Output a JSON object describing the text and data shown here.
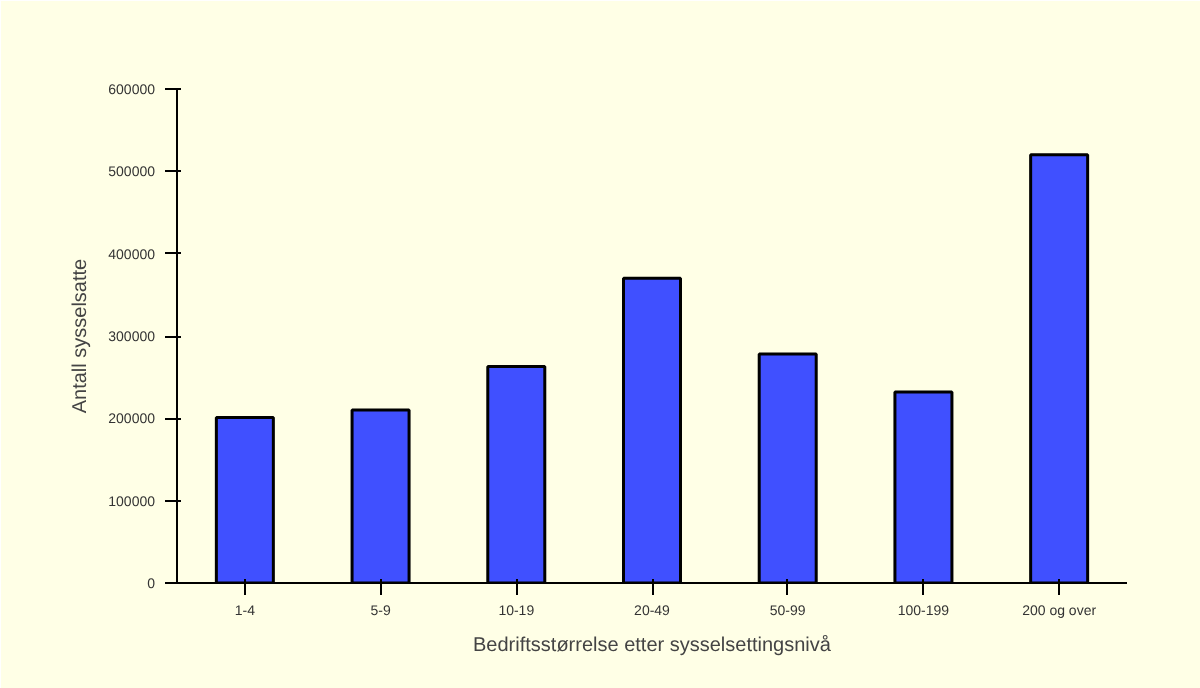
{
  "chart_data": {
    "type": "bar",
    "xlabel": "Bedriftsstørrelse etter sysselsettingsnivå",
    "ylabel": "Antall sysselsatte",
    "categories": [
      "1-4",
      "5-9",
      "10-19",
      "20-49",
      "50-99",
      "100-199",
      "200 og over"
    ],
    "values": [
      201000,
      210000,
      263000,
      370000,
      278000,
      232000,
      520000
    ],
    "color": "#4050ff",
    "ylim": [
      0,
      600000
    ],
    "yticks": [
      0,
      100000,
      200000,
      300000,
      400000,
      500000,
      600000
    ],
    "grid": false
  }
}
